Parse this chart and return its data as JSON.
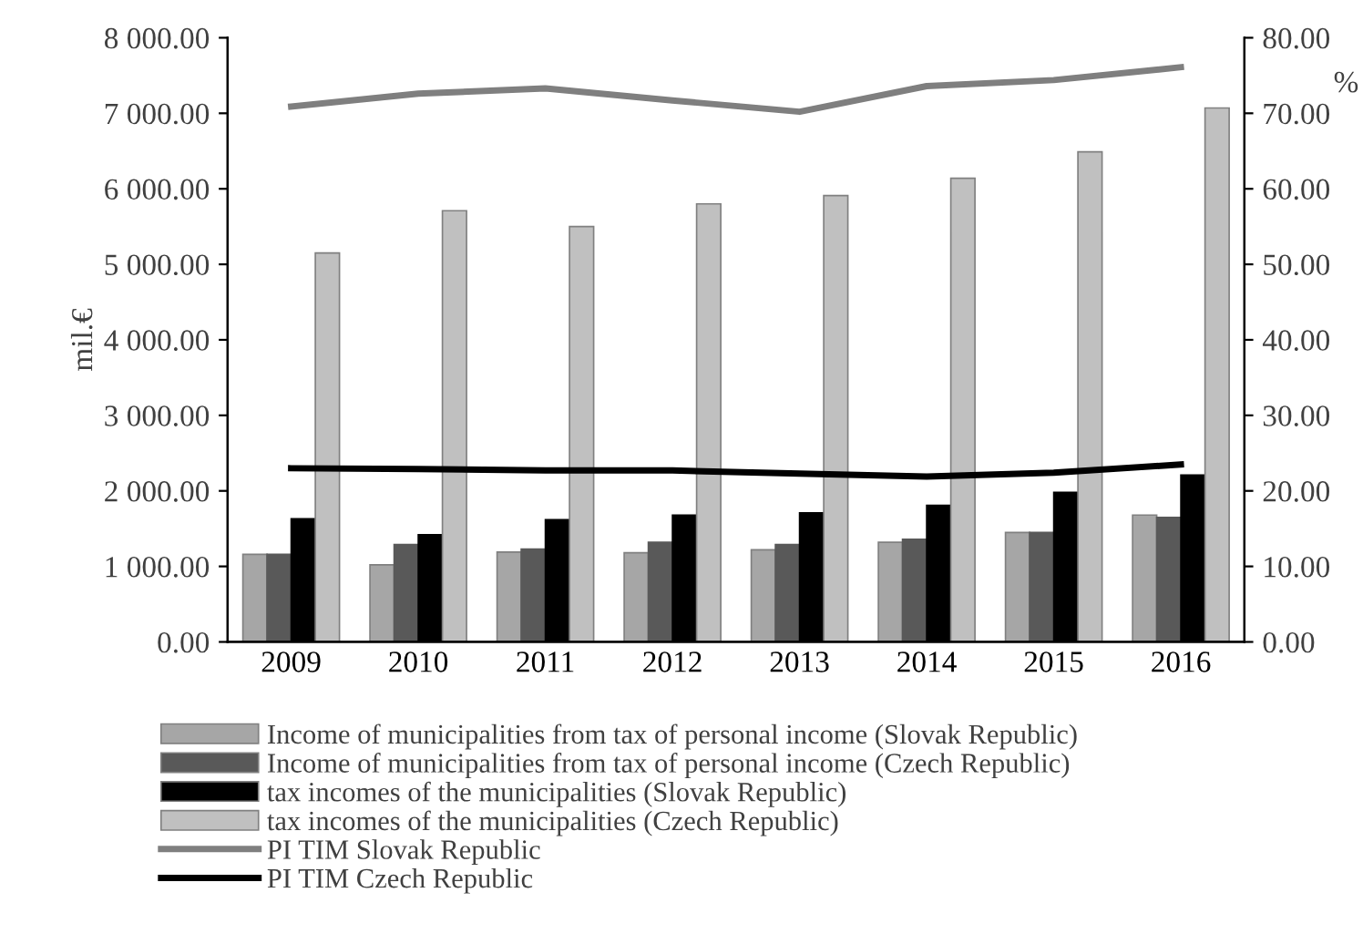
{
  "chart_data": {
    "type": "bar",
    "ylabel": "mil.€",
    "y2label": "%",
    "categories": [
      "2009",
      "2010",
      "2011",
      "2012",
      "2013",
      "2014",
      "2015",
      "2016"
    ],
    "series": [
      {
        "name": "Income of municipalities from tax of personal income (Slovak Republic)",
        "color": "#a6a6a6",
        "values": [
          1160,
          1020,
          1190,
          1180,
          1220,
          1320,
          1450,
          1680
        ]
      },
      {
        "name": "Income of municipalities from tax of personal income (Czech Republic)",
        "color": "#595959",
        "values": [
          1160,
          1290,
          1230,
          1320,
          1290,
          1360,
          1450,
          1650
        ]
      },
      {
        "name": "tax incomes of the municipalities (Slovak Republic)",
        "color": "#000000",
        "values": [
          1630,
          1420,
          1620,
          1680,
          1710,
          1810,
          1980,
          2210
        ]
      },
      {
        "name": "tax incomes of the municipalities (Czech Republic)",
        "color": "#c0c0c0",
        "values": [
          5150,
          5710,
          5500,
          5800,
          5910,
          6140,
          6490,
          7070
        ]
      },
      {
        "name": "PI TIM Slovak Republic",
        "type": "line",
        "axis": "y2",
        "color": "#7f7f7f",
        "values": [
          70.9,
          72.6,
          73.3,
          71.7,
          70.2,
          73.6,
          74.4,
          76.1
        ]
      },
      {
        "name": "PI TIM Czech Republic",
        "type": "line",
        "axis": "y2",
        "color": "#000000",
        "values": [
          23.0,
          22.9,
          22.7,
          22.7,
          22.3,
          21.9,
          22.4,
          23.5
        ]
      }
    ],
    "ylim": [
      0,
      8000
    ],
    "yticks": [
      {
        "value": 0,
        "label": "0.00"
      },
      {
        "value": 1000,
        "label": "1 000.00"
      },
      {
        "value": 2000,
        "label": "2 000.00"
      },
      {
        "value": 3000,
        "label": "3 000.00"
      },
      {
        "value": 4000,
        "label": "4 000.00"
      },
      {
        "value": 5000,
        "label": "5 000.00"
      },
      {
        "value": 6000,
        "label": "6 000.00"
      },
      {
        "value": 7000,
        "label": "7 000.00"
      },
      {
        "value": 8000,
        "label": "8 000.00"
      }
    ],
    "y2lim": [
      0,
      80
    ],
    "y2ticks": [
      {
        "value": 0,
        "label": "0.00"
      },
      {
        "value": 10,
        "label": "10.00"
      },
      {
        "value": 20,
        "label": "20.00"
      },
      {
        "value": 30,
        "label": "30.00"
      },
      {
        "value": 40,
        "label": "40.00"
      },
      {
        "value": 50,
        "label": "50.00"
      },
      {
        "value": 60,
        "label": "60.00"
      },
      {
        "value": 70,
        "label": "70.00"
      },
      {
        "value": 80,
        "label": "80.00"
      }
    ],
    "grid": false,
    "legend": "bottom",
    "marker": "none",
    "line_style": "solid"
  }
}
